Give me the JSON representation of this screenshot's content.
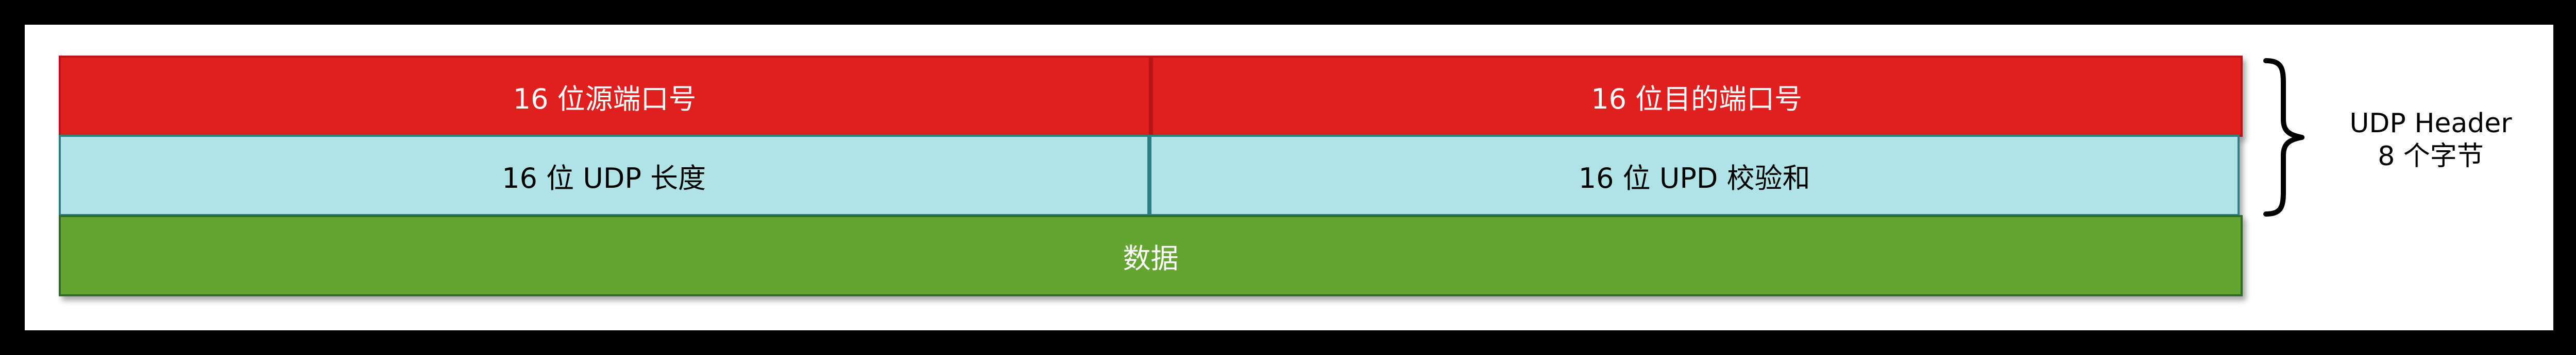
{
  "diagram": {
    "rows": [
      {
        "cells": [
          {
            "label": "16 位源端口号",
            "color": "#e01f1f"
          },
          {
            "label": "16 位目的端口号",
            "color": "#e01f1f"
          }
        ]
      },
      {
        "cells": [
          {
            "label": "16 位 UDP 长度",
            "color": "#b0e3e6"
          },
          {
            "label": "16 位 UPD 校验和",
            "color": "#b0e3e6"
          }
        ]
      },
      {
        "cells": [
          {
            "label": "数据",
            "color": "#64a531"
          }
        ]
      }
    ],
    "brace_label": {
      "line1": "UDP Header",
      "line2": "8 个字节"
    }
  }
}
